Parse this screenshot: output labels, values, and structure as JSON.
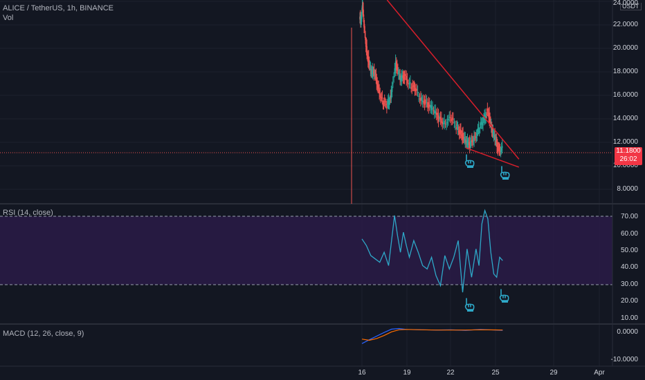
{
  "header": {
    "symbol": "ALICE / TetherUS, 1h, BINANCE",
    "vol_label": "Vol",
    "rsi_label": "RSI (14, close)",
    "macd_label": "MACD (12, 26, close, 9)"
  },
  "price_axis": {
    "unit": "USDT",
    "ticks": [
      "24.0000",
      "22.0000",
      "20.0000",
      "18.0000",
      "16.0000",
      "14.0000",
      "12.0000",
      "10.0000",
      "8.0000"
    ],
    "current_price": "11.1800",
    "countdown": "26:02"
  },
  "rsi_axis": {
    "ticks": [
      "70.00",
      "60.00",
      "50.00",
      "40.00",
      "30.00",
      "20.00",
      "10.00"
    ]
  },
  "macd_axis": {
    "ticks": [
      "0.0000",
      "-10.0000"
    ]
  },
  "time_axis": {
    "ticks": [
      "16",
      "19",
      "22",
      "25",
      "29",
      "Apr"
    ]
  },
  "colors": {
    "background": "#131722",
    "up": "#26a69a",
    "down": "#ef5350",
    "rsi": "#2ea9c9",
    "rsi_band": "#2a1b47",
    "trendline": "#d81e2b",
    "macd": "#2962ff",
    "signal": "#ff6d00",
    "hand": "#2ea9c9",
    "badge": "#f23645"
  },
  "annotations": [
    "pointing-hand-icon",
    "pointing-hand-icon",
    "pointing-hand-icon",
    "pointing-hand-icon"
  ],
  "chart_data": {
    "type": "line",
    "price": {
      "ylim": [
        6.4,
        24.2
      ],
      "x_days": [
        15.95,
        16.05,
        16.15,
        16.35,
        16.6,
        16.85,
        17.1,
        17.4,
        17.7,
        17.95,
        18.3,
        18.6,
        18.9,
        19.3,
        19.6,
        20.0,
        20.4,
        20.8,
        21.2,
        21.6,
        22.0,
        22.4,
        22.7,
        23.0,
        23.3,
        23.6,
        23.9,
        24.2,
        24.5,
        24.75,
        25.0,
        25.2,
        25.5
      ],
      "close": [
        22.5,
        23.7,
        22.0,
        19.5,
        18.0,
        17.8,
        16.6,
        15.3,
        14.9,
        15.8,
        18.6,
        17.3,
        17.5,
        16.8,
        16.3,
        15.6,
        15.1,
        14.7,
        13.8,
        13.5,
        13.8,
        13.2,
        12.5,
        11.9,
        11.5,
        12.2,
        12.8,
        13.6,
        14.6,
        13.0,
        12.1,
        11.2,
        11.18
      ]
    },
    "rsi": {
      "ylim": [
        5,
        77
      ],
      "x_days": [
        16.0,
        16.3,
        16.6,
        16.9,
        17.2,
        17.5,
        17.8,
        18.0,
        18.2,
        18.4,
        18.6,
        18.8,
        19.0,
        19.2,
        19.5,
        19.8,
        20.1,
        20.4,
        20.7,
        21.0,
        21.3,
        21.6,
        21.9,
        22.2,
        22.5,
        22.8,
        23.1,
        23.4,
        23.7,
        23.9,
        24.1,
        24.3,
        24.5,
        24.7,
        24.9,
        25.1,
        25.3,
        25.5
      ],
      "values": [
        56,
        52,
        46,
        44,
        42,
        48,
        40,
        55,
        70,
        58,
        48,
        60,
        52,
        45,
        55,
        48,
        40,
        38,
        45,
        34,
        28,
        46,
        38,
        45,
        55,
        24,
        50,
        33,
        50,
        40,
        65,
        73,
        68,
        48,
        35,
        33,
        45,
        43
      ],
      "upper": 70,
      "lower": 30
    },
    "macd": {
      "ylim": [
        -12,
        2
      ],
      "x_days": [
        16.0,
        16.5,
        17.0,
        17.5,
        18.0,
        18.5,
        19.0,
        20.0,
        21.0,
        22.0,
        23.0,
        24.0,
        25.0,
        25.5
      ],
      "macd": [
        -4.5,
        -3.2,
        -2.0,
        -0.8,
        0.3,
        0.5,
        0.2,
        0.1,
        0.0,
        0.1,
        -0.1,
        0.2,
        0.0,
        -0.1
      ],
      "signal": [
        -3.0,
        -3.4,
        -2.8,
        -1.8,
        -0.6,
        0.1,
        0.2,
        0.1,
        0.0,
        0.0,
        0.0,
        0.1,
        0.05,
        0.0
      ]
    },
    "trendlines": [
      {
        "x": [
          17.7,
          26.6
        ],
        "y": [
          24.2,
          10.3
        ]
      },
      {
        "x": [
          23.0,
          26.6
        ],
        "y": [
          11.3,
          9.6
        ]
      }
    ]
  }
}
